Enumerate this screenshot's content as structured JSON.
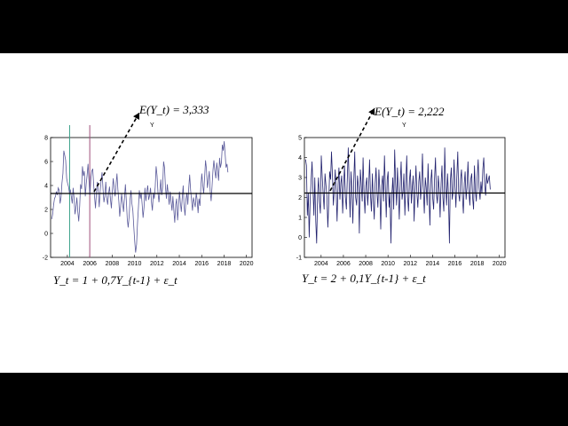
{
  "slide": {
    "left_expectation": "E(Y_t) = 3,333",
    "right_expectation": "E(Y_t) = 2,222",
    "left_model": "Y_t = 1 + 0,7Y_{t-1} + ε_t",
    "right_model": "Y_t = 2 + 0,1Y_{t-1} + ε_t"
  },
  "chart_data": [
    {
      "type": "line",
      "title": "Y",
      "xlabel": "",
      "ylabel": "",
      "xlim": [
        2002.5,
        2020.5
      ],
      "ylim": [
        -2,
        8
      ],
      "yticks": [
        -2,
        0,
        2,
        4,
        6,
        8
      ],
      "xticks": [
        2004,
        2006,
        2008,
        2010,
        2012,
        2014,
        2016,
        2018,
        2020
      ],
      "mean_line": 3.333,
      "vertical_markers": [
        2004.2,
        2006.0
      ],
      "series": [
        {
          "x_start": 2002.6,
          "x_step": 0.0833,
          "values": [
            1.2,
            1.6,
            2.4,
            2.9,
            3.1,
            3.5,
            3.2,
            3.8,
            3.6,
            2.5,
            3.0,
            4.2,
            5.0,
            6.9,
            6.5,
            6.1,
            4.6,
            4.2,
            3.9,
            3.4,
            3.6,
            3.1,
            2.5,
            3.8,
            2.9,
            1.6,
            2.2,
            3.0,
            1.8,
            1.0,
            2.3,
            4.1,
            3.7,
            5.6,
            4.8,
            5.2,
            3.1,
            4.1,
            4.9,
            5.8,
            4.4,
            3.2,
            4.6,
            5.2,
            5.4,
            4.1,
            3.0,
            2.1,
            3.5,
            4.3,
            3.4,
            2.2,
            3.6,
            4.4,
            5.1,
            3.8,
            2.6,
            3.1,
            4.3,
            3.0,
            2.4,
            3.3,
            3.9,
            2.9,
            2.1,
            3.5,
            4.6,
            3.8,
            3.1,
            4.0,
            5.0,
            3.7,
            2.7,
            1.4,
            2.3,
            3.3,
            2.6,
            1.8,
            2.9,
            4.1,
            2.8,
            1.2,
            0.5,
            1.4,
            2.8,
            3.6,
            2.5,
            1.9,
            0.6,
            -0.7,
            -1.6,
            -0.9,
            0.8,
            2.2,
            3.6,
            2.9,
            3.4,
            2.4,
            1.3,
            2.2,
            3.8,
            2.7,
            3.5,
            4.0,
            2.8,
            3.2,
            3.8,
            2.6,
            1.9,
            3.4,
            2.9,
            3.9,
            5.6,
            4.8,
            3.4,
            2.6,
            3.5,
            4.5,
            3.2,
            3.9,
            6.0,
            5.5,
            3.9,
            2.9,
            4.1,
            3.3,
            2.4,
            3.5,
            2.7,
            1.9,
            3.1,
            1.9,
            0.9,
            2.4,
            2.9,
            1.1,
            2.1,
            3.5,
            2.6,
            1.8,
            2.9,
            4.0,
            2.3,
            1.5,
            2.8,
            3.4,
            2.4,
            3.8,
            4.9,
            3.6,
            2.8,
            1.9,
            3.0,
            2.6,
            2.2,
            3.4,
            2.8,
            1.7,
            2.9,
            2.3,
            3.9,
            5.0,
            4.1,
            3.3,
            4.6,
            6.1,
            5.4,
            3.8,
            4.4,
            5.2,
            3.6,
            2.7,
            3.9,
            5.3,
            6.1,
            5.2,
            4.6,
            5.9,
            5.2,
            4.4,
            6.3,
            5.5,
            5.9,
            7.4,
            6.9,
            7.7,
            6.6,
            5.5,
            5.8,
            5.1
          ]
        }
      ]
    },
    {
      "type": "line",
      "title": "Y",
      "xlabel": "",
      "ylabel": "",
      "xlim": [
        2002.5,
        2020.5
      ],
      "ylim": [
        -1,
        5
      ],
      "yticks": [
        -1,
        0,
        1,
        2,
        3,
        4,
        5
      ],
      "xticks": [
        2004,
        2006,
        2008,
        2010,
        2012,
        2014,
        2016,
        2018,
        2020
      ],
      "mean_line": 2.222,
      "vertical_markers": [],
      "series": [
        {
          "x_start": 2002.6,
          "x_step": 0.0833,
          "values": [
            3.9,
            3.6,
            1.1,
            2.2,
            0.0,
            1.9,
            2.8,
            3.8,
            2.5,
            1.1,
            3.0,
            0.8,
            -0.3,
            2.2,
            3.0,
            1.8,
            1.2,
            4.1,
            3.0,
            2.2,
            1.4,
            3.2,
            2.6,
            2.1,
            0.5,
            1.7,
            3.3,
            2.9,
            4.3,
            3.1,
            1.6,
            2.4,
            3.4,
            2.3,
            0.8,
            2.6,
            3.5,
            1.9,
            2.7,
            3.1,
            1.2,
            2.5,
            3.6,
            2.0,
            1.4,
            2.9,
            4.5,
            2.7,
            1.0,
            3.3,
            2.4,
            0.7,
            2.8,
            4.3,
            2.0,
            1.6,
            3.1,
            2.5,
            0.2,
            3.4,
            2.7,
            1.8,
            4.0,
            2.3,
            1.2,
            2.6,
            3.0,
            1.6,
            2.5,
            3.9,
            2.1,
            1.3,
            3.2,
            1.9,
            0.9,
            2.7,
            3.5,
            2.2,
            1.5,
            3.4,
            2.4,
            0.4,
            2.6,
            3.1,
            1.8,
            4.1,
            2.5,
            1.0,
            2.9,
            3.3,
            1.5,
            2.2,
            -0.3,
            2.1,
            3.0,
            1.4,
            4.4,
            2.8,
            1.6,
            3.5,
            2.4,
            0.9,
            2.7,
            3.8,
            1.9,
            2.3,
            3.2,
            1.1,
            2.6,
            4.1,
            2.0,
            1.3,
            2.9,
            3.4,
            1.7,
            2.5,
            3.1,
            0.8,
            2.4,
            3.6,
            2.2,
            1.5,
            2.8,
            3.3,
            1.9,
            2.6,
            4.2,
            2.3,
            1.2,
            3.0,
            2.5,
            1.6,
            3.7,
            2.1,
            0.6,
            2.8,
            3.4,
            2.0,
            1.4,
            2.9,
            4.0,
            2.2,
            1.7,
            3.1,
            2.4,
            1.0,
            2.7,
            3.6,
            2.0,
            1.3,
            4.5,
            2.5,
            1.6,
            3.2,
            2.1,
            -0.3,
            2.8,
            3.5,
            1.9,
            2.3,
            3.9,
            2.6,
            1.5,
            3.0,
            4.3,
            2.2,
            1.8,
            2.9,
            3.4,
            2.1,
            1.2,
            2.7,
            3.3,
            1.9,
            2.5,
            3.8,
            2.4,
            1.6,
            2.9,
            3.2,
            2.0,
            1.4,
            3.6,
            2.3,
            1.8,
            3.0,
            3.9,
            2.5,
            1.9,
            2.8,
            2.2,
            3.4,
            4.0,
            2.6,
            2.1,
            3.2,
            2.7,
            2.9,
            3.1,
            2.4
          ]
        }
      ]
    }
  ]
}
